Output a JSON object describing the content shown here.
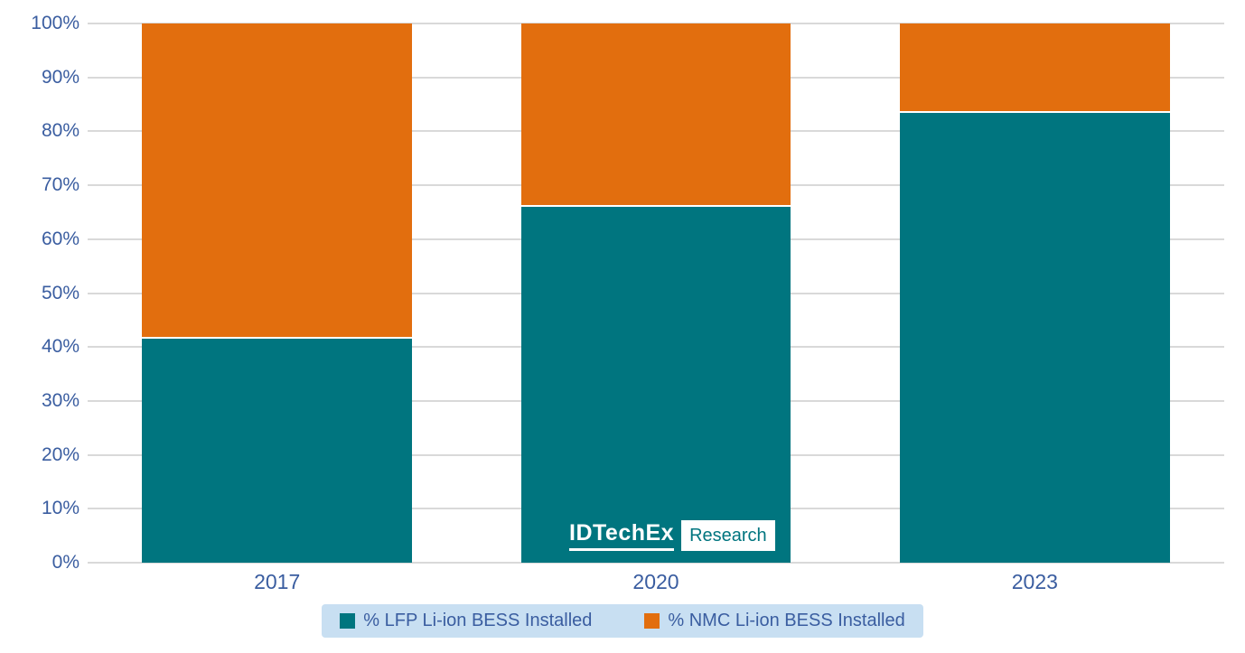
{
  "page": {
    "background": "#ffffff"
  },
  "colors": {
    "lfp_teal": "#00757F",
    "nmc_orange": "#E26E0E",
    "axis_text_blue": "#3A5DA0",
    "legend_background": "#C8DFF2",
    "gridline_gray": "#D9D9D9",
    "segment_separator_white": "#FFFFFF"
  },
  "logo": {
    "brand": "IDTechEx",
    "suffix": "Research"
  },
  "chart_data": {
    "type": "bar",
    "subtype": "stacked-100-percent-vertical",
    "title": "",
    "xlabel": "",
    "ylabel": "",
    "categories": [
      "2017",
      "2020",
      "2023"
    ],
    "series": [
      {
        "name": "% LFP Li-ion BESS Installed",
        "color": "#00757F",
        "values": [
          41.5,
          66,
          83.5
        ]
      },
      {
        "name": "% NMC Li-ion BESS Installed",
        "color": "#E26E0E",
        "values": [
          58.5,
          34,
          16.5
        ]
      }
    ],
    "ylim": [
      0,
      100
    ],
    "ytick_step": 10,
    "yticklabels": [
      "0%",
      "10%",
      "20%",
      "30%",
      "40%",
      "50%",
      "60%",
      "70%",
      "80%",
      "90%",
      "100%"
    ],
    "grid": "horizontal",
    "legend_position": "bottom-center"
  }
}
